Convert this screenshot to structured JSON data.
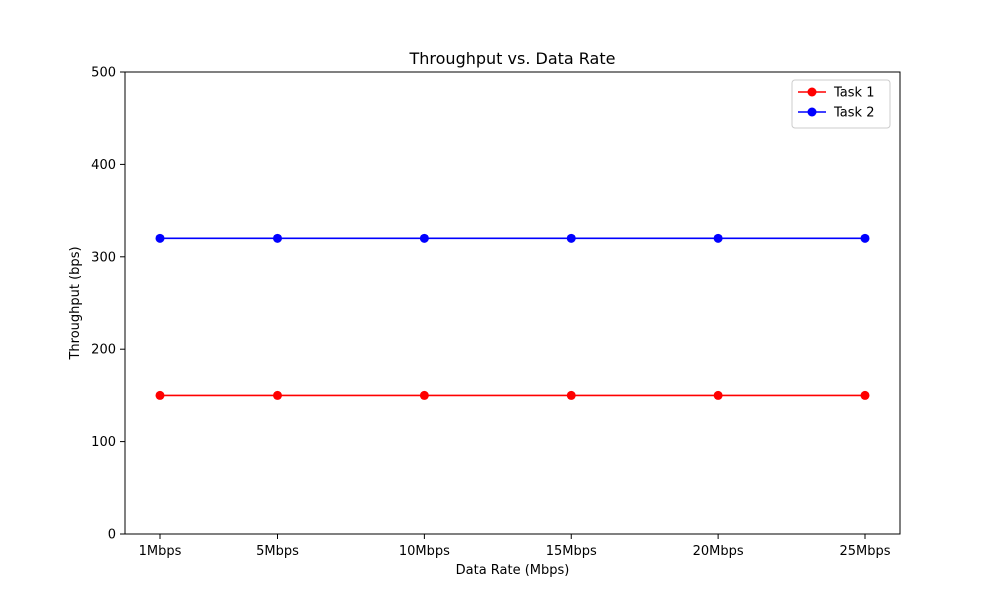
{
  "chart_data": {
    "type": "line",
    "title": "Throughput vs. Data Rate",
    "xlabel": "Data Rate (Mbps)",
    "ylabel": "Throughput (bps)",
    "categories": [
      "1Mbps",
      "5Mbps",
      "10Mbps",
      "15Mbps",
      "20Mbps",
      "25Mbps"
    ],
    "x": [
      1,
      5,
      10,
      15,
      20,
      25
    ],
    "ylim": [
      0,
      500
    ],
    "yticks": [
      0,
      100,
      200,
      300,
      400,
      500
    ],
    "grid": false,
    "legend_position": "top-right",
    "series": [
      {
        "name": "Task 1",
        "color": "#ff0000",
        "marker": "circle",
        "values": [
          150,
          150,
          150,
          150,
          150,
          150
        ]
      },
      {
        "name": "Task 2",
        "color": "#0000ff",
        "marker": "circle",
        "values": [
          320,
          320,
          320,
          320,
          320,
          320
        ]
      }
    ]
  }
}
